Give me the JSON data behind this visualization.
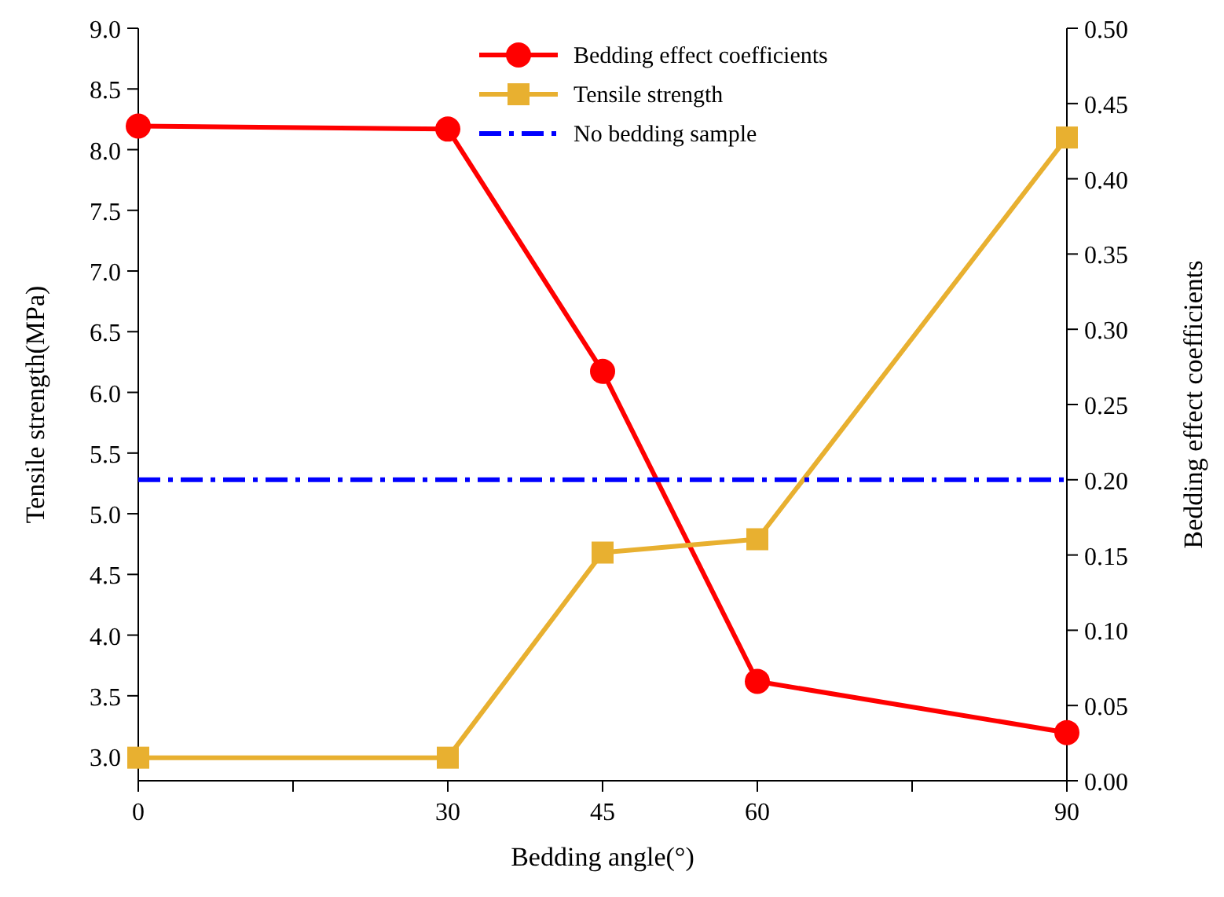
{
  "chart_data": {
    "type": "line",
    "xlabel": "Bedding angle(°)",
    "ylabel": "Tensile strength(MPa)",
    "y2label": "Bedding effect coefficients",
    "x": [
      0,
      30,
      45,
      60,
      90
    ],
    "xlim": [
      0,
      90
    ],
    "xticks": [
      0,
      {
        "value": 15,
        "label": null
      },
      30,
      45,
      60,
      {
        "value": 75,
        "label": null
      },
      90
    ],
    "ylim": [
      2.8,
      9.0
    ],
    "yticks": [
      {
        "value": 3,
        "label": "3.0"
      },
      3.5,
      {
        "value": 4,
        "label": "4.0"
      },
      4.5,
      {
        "value": 5,
        "label": "5.0"
      },
      5.5,
      {
        "value": 6,
        "label": "6.0"
      },
      6.5,
      {
        "value": 7,
        "label": "7.0"
      },
      7.5,
      {
        "value": 8,
        "label": "8.0"
      },
      8.5,
      {
        "value": 9,
        "label": "9.0"
      }
    ],
    "y2lim": [
      0,
      0.5
    ],
    "y2ticks": [
      {
        "value": 0,
        "label": "0.00"
      },
      0.05,
      {
        "value": 0.1,
        "label": "0.10"
      },
      0.15,
      {
        "value": 0.2,
        "label": "0.20"
      },
      0.25,
      {
        "value": 0.3,
        "label": "0.30"
      },
      0.35,
      {
        "value": 0.4,
        "label": "0.40"
      },
      0.45,
      {
        "value": 0.5,
        "label": "0.50"
      }
    ],
    "legend": "top",
    "grid": false,
    "series": [
      {
        "name": "Bedding effect coefficients",
        "color": "#ff0000",
        "axis": "y2",
        "marker": "circle",
        "line_style": "solid",
        "values": [
          0.435,
          0.433,
          0.272,
          0.066,
          0.032
        ]
      },
      {
        "name": "Tensile strength",
        "color": "#e8b030",
        "marker": "square",
        "line_style": "solid",
        "values": [
          2.99,
          2.99,
          4.68,
          4.79,
          8.1
        ]
      },
      {
        "name": "No bedding sample",
        "color": "#0000ff",
        "marker": "none",
        "line_style": "dashed",
        "x": [
          0,
          90
        ],
        "values": [
          5.28,
          5.28
        ]
      }
    ]
  }
}
